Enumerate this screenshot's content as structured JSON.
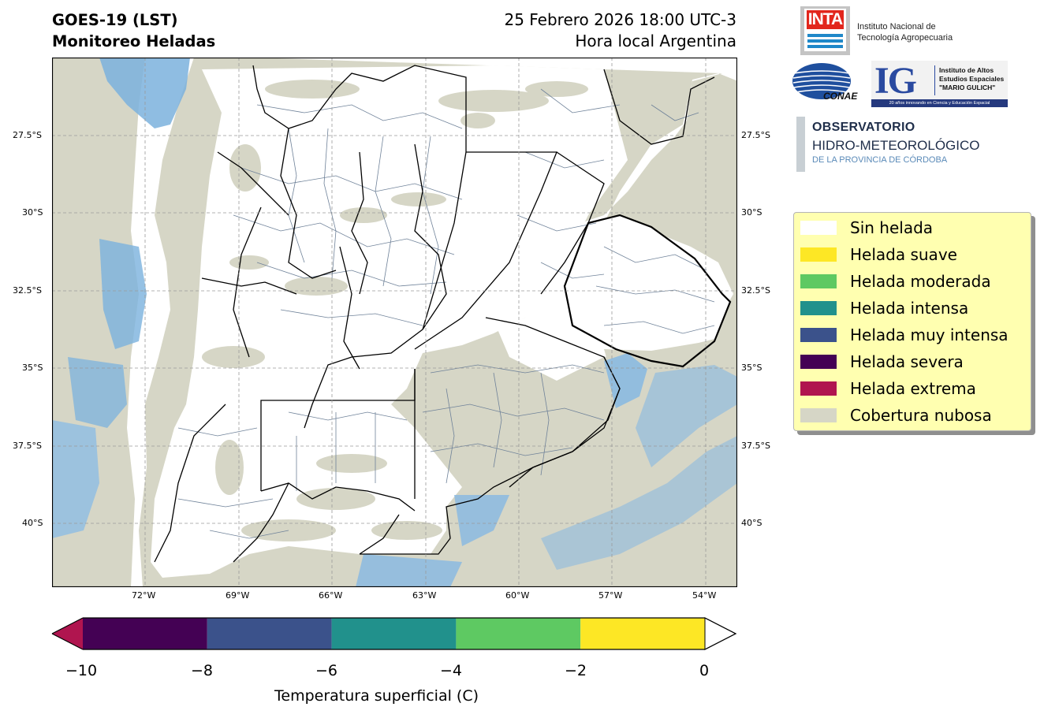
{
  "title": {
    "left_line1": "GOES-19 (LST)",
    "left_line2": "Monitoreo Heladas",
    "right_line1": "25 Febrero 2026 18:00 UTC-3",
    "right_line2": "Hora local Argentina"
  },
  "map": {
    "lat_ticks": [
      "27.5°S",
      "30°S",
      "32.5°S",
      "35°S",
      "37.5°S",
      "40°S"
    ],
    "lon_ticks": [
      "72°W",
      "69°W",
      "66°W",
      "63°W",
      "60°W",
      "57°W",
      "54°W"
    ],
    "extent": {
      "lon_min": "75.0°W",
      "lon_max": "53.0°W",
      "lat_min": "42.0°S",
      "lat_max": "25.0°S"
    },
    "cloud_color": "#d6d6c6",
    "clear_color": "#ffffff",
    "boundary_color": "#000000",
    "department_color": "#6f8299"
  },
  "colorbar": {
    "label": "Temperatura superficial (C)",
    "ticks": [
      "−10",
      "−8",
      "−6",
      "−4",
      "−2",
      "0"
    ],
    "bins": [
      {
        "from": -10,
        "to": -8,
        "color": "#440154"
      },
      {
        "from": -8,
        "to": -6,
        "color": "#3b528b"
      },
      {
        "from": -6,
        "to": -4,
        "color": "#21918c"
      },
      {
        "from": -4,
        "to": -2,
        "color": "#5ec962"
      },
      {
        "from": -2,
        "to": 0,
        "color": "#fde725"
      }
    ],
    "under_color": "#b0154f",
    "over_color": "#ffffff"
  },
  "legend": {
    "items": [
      {
        "label": "Sin helada",
        "color": "#ffffff"
      },
      {
        "label": "Helada suave",
        "color": "#fde725"
      },
      {
        "label": "Helada moderada",
        "color": "#5ec962"
      },
      {
        "label": "Helada intensa",
        "color": "#21918c"
      },
      {
        "label": "Helada muy intensa",
        "color": "#3b528b"
      },
      {
        "label": "Helada severa",
        "color": "#440154"
      },
      {
        "label": "Helada extrema",
        "color": "#b0154f"
      },
      {
        "label": "Cobertura nubosa",
        "color": "#d6d6c6"
      }
    ]
  },
  "logos": {
    "inta": {
      "word": "INTA",
      "line1": "Instituto Nacional de",
      "line2": "Tecnología Agropecuaria"
    },
    "conae": {
      "word": "CONAE"
    },
    "ig": {
      "letters": "IG",
      "line1": "Instituto de Altos",
      "line2": "Estudios Espaciales",
      "line3": "\"MARIO GULICH\"",
      "strip": "20 años innovando en Ciencia y Educación Espacial"
    },
    "observatorio": {
      "line1": "OBSERVATORIO",
      "line2": "HIDRO-METEOROLÓGICO",
      "line3": "DE LA PROVINCIA DE CÓRDOBA"
    }
  }
}
